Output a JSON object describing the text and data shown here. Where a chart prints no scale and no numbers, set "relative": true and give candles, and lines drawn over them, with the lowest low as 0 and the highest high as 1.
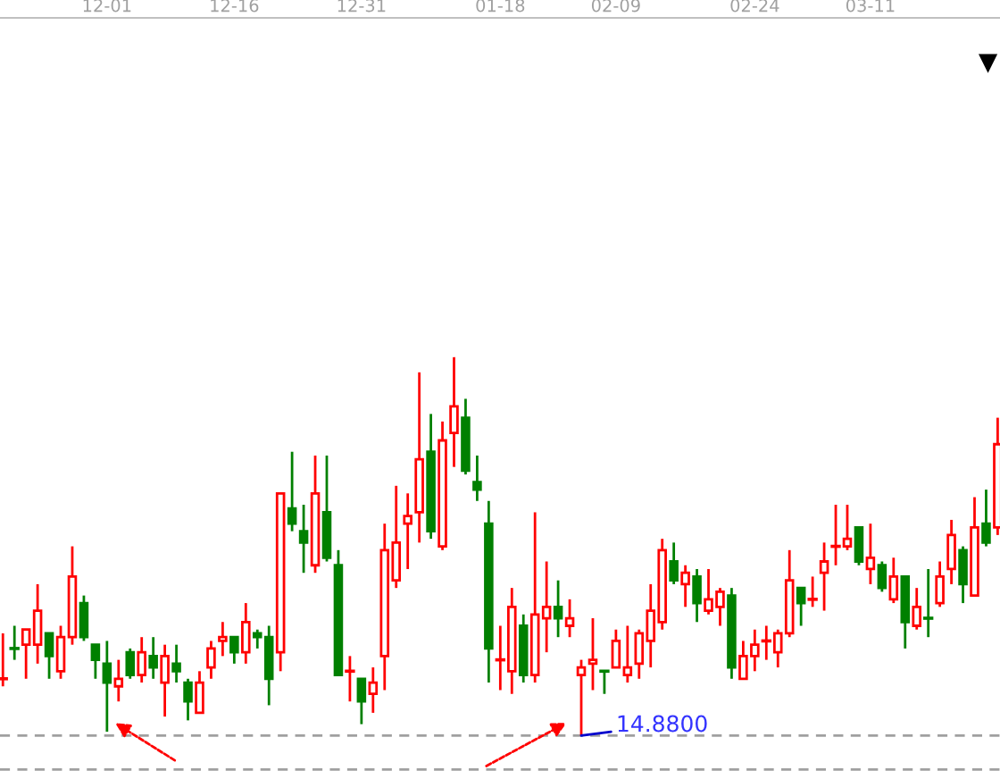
{
  "chart_data": {
    "type": "candlestick",
    "relative": true,
    "tick_labels": "x",
    "categories": [
      null,
      null,
      null,
      null,
      null,
      null,
      null,
      null,
      null,
      "12-01",
      null,
      null,
      null,
      null,
      null,
      null,
      null,
      null,
      null,
      null,
      "12-16",
      null,
      null,
      null,
      null,
      null,
      null,
      null,
      null,
      null,
      null,
      "12-31",
      null,
      null,
      null,
      null,
      null,
      null,
      null,
      null,
      null,
      null,
      null,
      "01-18",
      null,
      null,
      null,
      null,
      null,
      null,
      null,
      null,
      null,
      "02-09",
      null,
      null,
      null,
      null,
      null,
      null,
      null,
      null,
      null,
      null,
      null,
      "02-24",
      null,
      null,
      null,
      null,
      null,
      null,
      null,
      null,
      null,
      "03-11",
      null,
      null,
      null,
      null,
      null,
      null,
      null,
      null,
      null,
      null,
      null
    ],
    "ohlc": [
      [
        0.15,
        0.27,
        0.13,
        0.15
      ],
      [
        0.23,
        0.29,
        0.2,
        0.23
      ],
      [
        0.24,
        0.28,
        0.15,
        0.28
      ],
      [
        0.24,
        0.4,
        0.19,
        0.33
      ],
      [
        0.27,
        0.27,
        0.15,
        0.21
      ],
      [
        0.17,
        0.29,
        0.15,
        0.26
      ],
      [
        0.26,
        0.5,
        0.24,
        0.42
      ],
      [
        0.35,
        0.37,
        0.25,
        0.26
      ],
      [
        0.24,
        0.24,
        0.15,
        0.2
      ],
      [
        0.19,
        0.25,
        0.01,
        0.14
      ],
      [
        0.13,
        0.2,
        0.09,
        0.15
      ],
      [
        0.22,
        0.23,
        0.15,
        0.16
      ],
      [
        0.16,
        0.26,
        0.14,
        0.22
      ],
      [
        0.21,
        0.26,
        0.15,
        0.18
      ],
      [
        0.14,
        0.24,
        0.05,
        0.21
      ],
      [
        0.19,
        0.24,
        0.14,
        0.17
      ],
      [
        0.14,
        0.15,
        0.04,
        0.09
      ],
      [
        0.06,
        0.17,
        0.06,
        0.14
      ],
      [
        0.18,
        0.25,
        0.15,
        0.23
      ],
      [
        0.25,
        0.3,
        0.21,
        0.26
      ],
      [
        0.26,
        0.26,
        0.19,
        0.22
      ],
      [
        0.22,
        0.35,
        0.19,
        0.3
      ],
      [
        0.27,
        0.28,
        0.23,
        0.26
      ],
      [
        0.26,
        0.29,
        0.08,
        0.15
      ],
      [
        0.22,
        0.64,
        0.17,
        0.64
      ],
      [
        0.6,
        0.75,
        0.54,
        0.56
      ],
      [
        0.54,
        0.61,
        0.43,
        0.51
      ],
      [
        0.45,
        0.74,
        0.43,
        0.64
      ],
      [
        0.59,
        0.74,
        0.46,
        0.47
      ],
      [
        0.45,
        0.49,
        0.16,
        0.16
      ],
      [
        0.17,
        0.21,
        0.09,
        0.17
      ],
      [
        0.15,
        0.15,
        0.03,
        0.09
      ],
      [
        0.11,
        0.18,
        0.06,
        0.14
      ],
      [
        0.21,
        0.56,
        0.12,
        0.49
      ],
      [
        0.41,
        0.66,
        0.39,
        0.51
      ],
      [
        0.56,
        0.64,
        0.44,
        0.58
      ],
      [
        0.59,
        0.96,
        0.51,
        0.73
      ],
      [
        0.75,
        0.85,
        0.52,
        0.54
      ],
      [
        0.5,
        0.83,
        0.49,
        0.78
      ],
      [
        0.8,
        1,
        0.71,
        0.87
      ],
      [
        0.84,
        0.89,
        0.69,
        0.7
      ],
      [
        0.67,
        0.74,
        0.62,
        0.65
      ],
      [
        0.56,
        0.62,
        0.14,
        0.23
      ],
      [
        0.2,
        0.29,
        0.12,
        0.2
      ],
      [
        0.17,
        0.39,
        0.11,
        0.34
      ],
      [
        0.29,
        0.32,
        0.14,
        0.16
      ],
      [
        0.16,
        0.59,
        0.14,
        0.32
      ],
      [
        0.31,
        0.46,
        0.22,
        0.34
      ],
      [
        0.34,
        0.41,
        0.26,
        0.31
      ],
      [
        0.29,
        0.36,
        0.26,
        0.31
      ],
      [
        0.16,
        0.2,
        0,
        0.18
      ],
      [
        0.19,
        0.31,
        0.12,
        0.2
      ],
      [
        0.17,
        0.17,
        0.11,
        0.17
      ],
      [
        0.18,
        0.28,
        0.18,
        0.25
      ],
      [
        0.16,
        0.29,
        0.14,
        0.18
      ],
      [
        0.19,
        0.28,
        0.15,
        0.27
      ],
      [
        0.25,
        0.4,
        0.18,
        0.33
      ],
      [
        0.3,
        0.52,
        0.28,
        0.49
      ],
      [
        0.46,
        0.51,
        0.4,
        0.41
      ],
      [
        0.4,
        0.45,
        0.34,
        0.43
      ],
      [
        0.42,
        0.44,
        0.3,
        0.35
      ],
      [
        0.33,
        0.44,
        0.32,
        0.36
      ],
      [
        0.34,
        0.39,
        0.29,
        0.38
      ],
      [
        0.37,
        0.39,
        0.15,
        0.18
      ],
      [
        0.15,
        0.25,
        0.15,
        0.21
      ],
      [
        0.21,
        0.28,
        0.17,
        0.24
      ],
      [
        0.25,
        0.29,
        0.2,
        0.25
      ],
      [
        0.22,
        0.28,
        0.18,
        0.27
      ],
      [
        0.27,
        0.49,
        0.26,
        0.41
      ],
      [
        0.39,
        0.39,
        0.29,
        0.35
      ],
      [
        0.36,
        0.42,
        0.34,
        0.36
      ],
      [
        0.43,
        0.51,
        0.33,
        0.46
      ],
      [
        0.5,
        0.61,
        0.45,
        0.5
      ],
      [
        0.5,
        0.61,
        0.49,
        0.52
      ],
      [
        0.55,
        0.55,
        0.45,
        0.46
      ],
      [
        0.44,
        0.56,
        0.4,
        0.47
      ],
      [
        0.45,
        0.46,
        0.38,
        0.39
      ],
      [
        0.36,
        0.47,
        0.35,
        0.42
      ],
      [
        0.42,
        0.42,
        0.23,
        0.3
      ],
      [
        0.29,
        0.39,
        0.28,
        0.34
      ],
      [
        0.31,
        0.44,
        0.26,
        0.31
      ],
      [
        0.35,
        0.46,
        0.34,
        0.42
      ],
      [
        0.44,
        0.57,
        0.4,
        0.53
      ],
      [
        0.49,
        0.5,
        0.35,
        0.4
      ],
      [
        0.37,
        0.63,
        0.37,
        0.55
      ],
      [
        0.56,
        0.65,
        0.5,
        0.51
      ],
      [
        0.55,
        0.84,
        0.53,
        0.77
      ]
    ],
    "colors": [
      "#ff0000",
      "#008000",
      "#ff0000",
      "#ff0000",
      "#008000",
      "#ff0000",
      "#ff0000",
      "#008000",
      "#008000",
      "#008000",
      "#ff0000",
      "#008000",
      "#ff0000",
      "#008000",
      "#ff0000",
      "#008000",
      "#008000",
      "#ff0000",
      "#ff0000",
      "#ff0000",
      "#008000",
      "#ff0000",
      "#008000",
      "#008000",
      "#ff0000",
      "#008000",
      "#008000",
      "#ff0000",
      "#008000",
      "#008000",
      "#ff0000",
      "#008000",
      "#ff0000",
      "#ff0000",
      "#ff0000",
      "#ff0000",
      "#ff0000",
      "#008000",
      "#ff0000",
      "#ff0000",
      "#008000",
      "#008000",
      "#008000",
      "#ff0000",
      "#ff0000",
      "#008000",
      "#ff0000",
      "#ff0000",
      "#008000",
      "#ff0000",
      "#ff0000",
      "#ff0000",
      "#008000",
      "#ff0000",
      "#ff0000",
      "#ff0000",
      "#ff0000",
      "#ff0000",
      "#008000",
      "#ff0000",
      "#008000",
      "#ff0000",
      "#ff0000",
      "#008000",
      "#ff0000",
      "#ff0000",
      "#ff0000",
      "#ff0000",
      "#ff0000",
      "#008000",
      "#ff0000",
      "#ff0000",
      "#ff0000",
      "#ff0000",
      "#008000",
      "#ff0000",
      "#008000",
      "#ff0000",
      "#008000",
      "#ff0000",
      "#008000",
      "#ff0000",
      "#ff0000",
      "#008000",
      "#ff0000",
      "#008000",
      "#ff0000"
    ],
    "ref_lines": [
      {
        "axis": "y",
        "value": 0,
        "color": "#a0a0a0",
        "line_style": "dashed"
      },
      {
        "axis": "y",
        "value": -0.09,
        "color": "#a0a0a0",
        "line_style": "dashed"
      }
    ],
    "annotations": [
      {
        "text": "14.8800",
        "y": 0
      }
    ]
  }
}
